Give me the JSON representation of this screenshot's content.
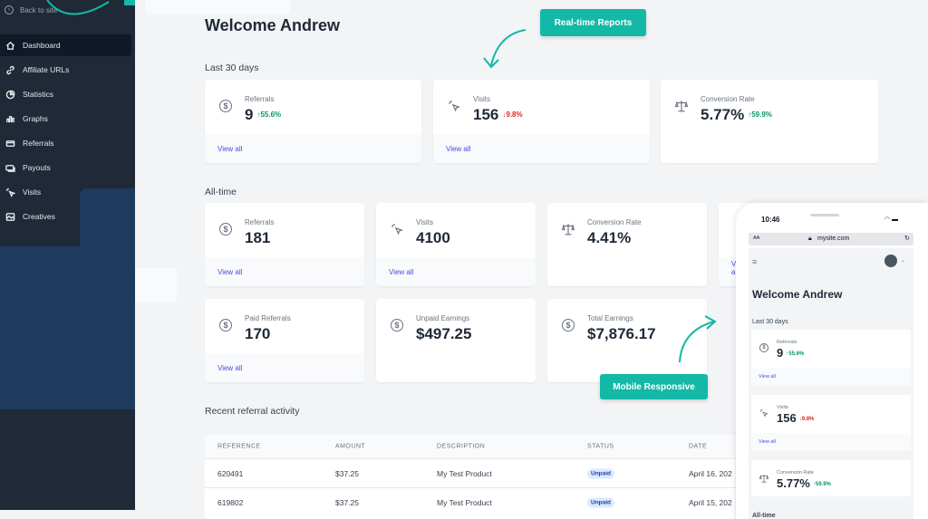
{
  "sidebar": {
    "back_label": "Back to site",
    "items": [
      {
        "label": "Dashboard",
        "icon": "home-icon",
        "active": true
      },
      {
        "label": "Affiliate URLs",
        "icon": "link-icon"
      },
      {
        "label": "Statistics",
        "icon": "pie-chart-icon"
      },
      {
        "label": "Graphs",
        "icon": "bar-chart-icon"
      },
      {
        "label": "Referrals",
        "icon": "card-icon"
      },
      {
        "label": "Payouts",
        "icon": "money-icon"
      },
      {
        "label": "Visits",
        "icon": "cursor-click-icon"
      },
      {
        "label": "Creatives",
        "icon": "image-icon"
      }
    ]
  },
  "main": {
    "title": "Welcome Andrew",
    "last30": {
      "heading": "Last 30 days",
      "cards": [
        {
          "label": "Referrals",
          "value": "9",
          "change": "55.6%",
          "direction": "up",
          "link": "View all"
        },
        {
          "label": "Visits",
          "value": "156",
          "change": "9.8%",
          "direction": "down",
          "link": "View all"
        },
        {
          "label": "Conversion Rate",
          "value": "5.77%",
          "change": "59.9%",
          "direction": "up"
        }
      ]
    },
    "alltime": {
      "heading": "All-time",
      "cards": [
        {
          "label": "Referrals",
          "value": "181",
          "link": "View all"
        },
        {
          "label": "Visits",
          "value": "4100",
          "link": "View all"
        },
        {
          "label": "Conversion Rate",
          "value": "4.41%"
        },
        {
          "label": "Paid Referrals",
          "value": "170",
          "link": "View all"
        },
        {
          "label": "Unpaid Earnings",
          "value": "$497.25"
        },
        {
          "label": "Total Earnings",
          "value": "$7,876.17"
        }
      ],
      "partial_link": "View all"
    },
    "recent": {
      "heading": "Recent referral activity",
      "columns": [
        "REFERENCE",
        "AMOUNT",
        "DESCRIPTION",
        "STATUS",
        "DATE"
      ],
      "rows": [
        {
          "reference": "620491",
          "amount": "$37.25",
          "description": "My Test Product",
          "status": "Unpaid",
          "date": "April 16, 202"
        },
        {
          "reference": "619802",
          "amount": "$37.25",
          "description": "My Test Product",
          "status": "Unpaid",
          "date": "April 15, 202"
        }
      ]
    }
  },
  "callouts": {
    "realtime": "Real-time Reports",
    "mobile": "Mobile Responsive"
  },
  "phone": {
    "time": "10:46",
    "text_size": "AA",
    "url": "mysite.com",
    "title": "Welcome Andrew",
    "last30_heading": "Last 30 days",
    "cards": [
      {
        "label": "Referrals",
        "value": "9",
        "change": "55.6%",
        "direction": "up",
        "link": "View all"
      },
      {
        "label": "Visits",
        "value": "156",
        "change": "9.8%",
        "direction": "down",
        "link": "View all"
      },
      {
        "label": "Conversion Rate",
        "value": "5.77%",
        "change": "59.9%",
        "direction": "up"
      }
    ],
    "alltime_heading": "All-time"
  },
  "colors": {
    "accent": "#14b8a6",
    "sidebar": "#1f2937",
    "link": "#4f46e5",
    "up": "#059669",
    "down": "#dc2626"
  }
}
